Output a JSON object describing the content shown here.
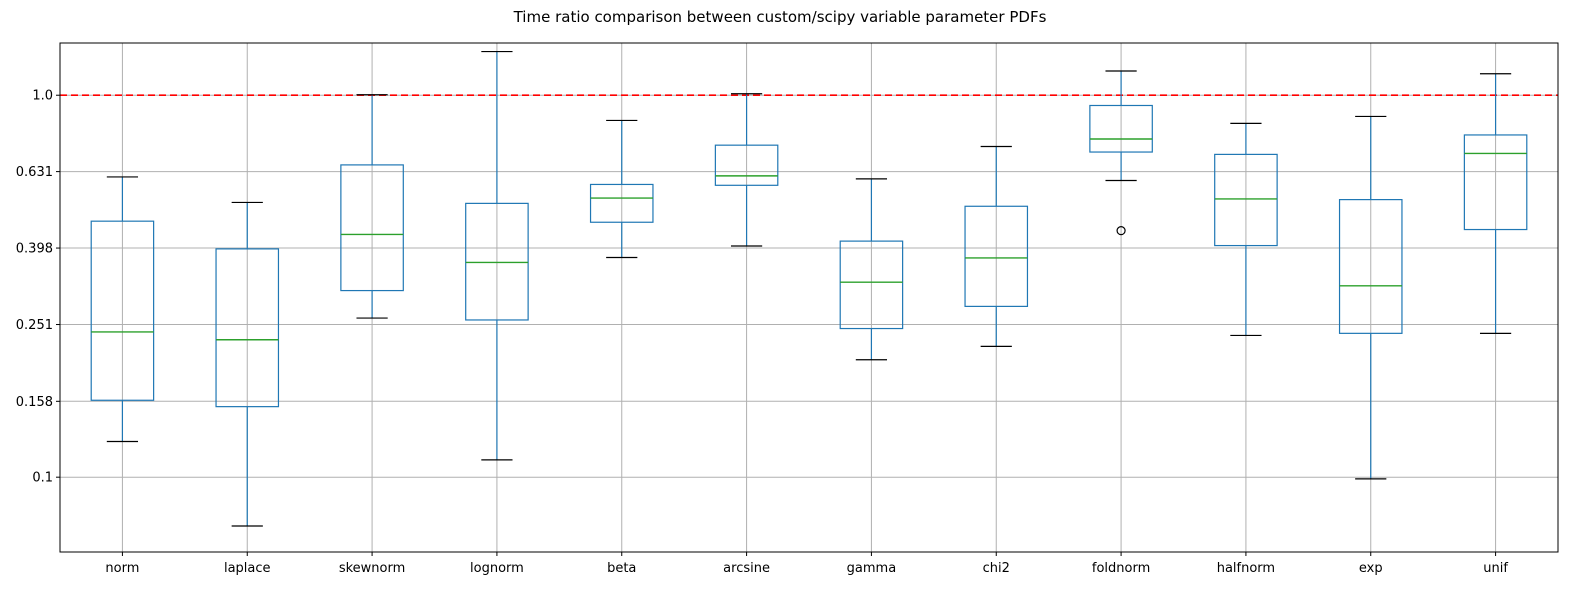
{
  "chart_data": {
    "type": "box",
    "title": "Time ratio comparison between custom/scipy variable parameter PDFs",
    "xlabel": "",
    "ylabel": "",
    "y_scale": "log",
    "ylim": [
      0.0637,
      1.37
    ],
    "y_ticks": [
      0.1,
      0.158,
      0.251,
      0.398,
      0.631,
      1.0
    ],
    "y_tick_labels": [
      "0.1",
      "0.158",
      "0.251",
      "0.398",
      "0.631",
      "1.0"
    ],
    "grid": true,
    "reference_line": {
      "y": 1.0,
      "color": "#ff0000",
      "style": "dashed"
    },
    "colors": {
      "box": "#1f77b4",
      "median": "#2ca02c",
      "cap": "#000000"
    },
    "categories": [
      "norm",
      "laplace",
      "skewnorm",
      "lognorm",
      "beta",
      "arcsine",
      "gamma",
      "chi2",
      "foldnorm",
      "halfnorm",
      "exp",
      "unif"
    ],
    "boxes": [
      {
        "name": "norm",
        "whislo": 0.124,
        "q1": 0.159,
        "med": 0.24,
        "q3": 0.468,
        "whishi": 0.611,
        "fliers": []
      },
      {
        "name": "laplace",
        "whislo": 0.0745,
        "q1": 0.153,
        "med": 0.229,
        "q3": 0.396,
        "whishi": 0.524,
        "fliers": []
      },
      {
        "name": "skewnorm",
        "whislo": 0.261,
        "q1": 0.308,
        "med": 0.432,
        "q3": 0.657,
        "whishi": 1.003,
        "fliers": []
      },
      {
        "name": "lognorm",
        "whislo": 0.111,
        "q1": 0.258,
        "med": 0.365,
        "q3": 0.521,
        "whishi": 1.301,
        "fliers": []
      },
      {
        "name": "beta",
        "whislo": 0.376,
        "q1": 0.465,
        "med": 0.538,
        "q3": 0.584,
        "whishi": 0.859,
        "fliers": []
      },
      {
        "name": "arcsine",
        "whislo": 0.403,
        "q1": 0.581,
        "med": 0.615,
        "q3": 0.74,
        "whishi": 1.009,
        "fliers": []
      },
      {
        "name": "gamma",
        "whislo": 0.203,
        "q1": 0.245,
        "med": 0.324,
        "q3": 0.415,
        "whishi": 0.604,
        "fliers": []
      },
      {
        "name": "chi2",
        "whislo": 0.22,
        "q1": 0.28,
        "med": 0.375,
        "q3": 0.512,
        "whishi": 0.734,
        "fliers": []
      },
      {
        "name": "foldnorm",
        "whislo": 0.598,
        "q1": 0.71,
        "med": 0.768,
        "q3": 0.94,
        "whishi": 1.157,
        "fliers": [
          0.442
        ]
      },
      {
        "name": "halfnorm",
        "whislo": 0.235,
        "q1": 0.404,
        "med": 0.535,
        "q3": 0.7,
        "whishi": 0.844,
        "fliers": []
      },
      {
        "name": "exp",
        "whislo": 0.099,
        "q1": 0.238,
        "med": 0.317,
        "q3": 0.533,
        "whishi": 0.88,
        "fliers": []
      },
      {
        "name": "unif",
        "whislo": 0.238,
        "q1": 0.445,
        "med": 0.704,
        "q3": 0.787,
        "whishi": 1.138,
        "fliers": []
      }
    ]
  }
}
